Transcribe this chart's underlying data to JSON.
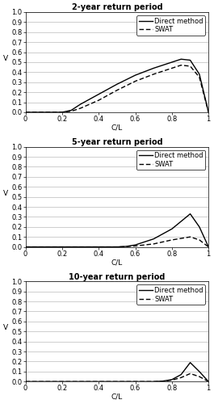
{
  "subplots": [
    {
      "title": "2-year return period",
      "direct_x": [
        0,
        0.2,
        0.25,
        0.3,
        0.4,
        0.5,
        0.6,
        0.7,
        0.8,
        0.85,
        0.9,
        0.95,
        1.0
      ],
      "direct_y": [
        0,
        0.0,
        0.02,
        0.08,
        0.18,
        0.28,
        0.37,
        0.44,
        0.5,
        0.53,
        0.52,
        0.38,
        0.0
      ],
      "swat_x": [
        0,
        0.2,
        0.25,
        0.3,
        0.4,
        0.5,
        0.6,
        0.7,
        0.8,
        0.85,
        0.9,
        0.95,
        1.0
      ],
      "swat_y": [
        0,
        0.0,
        0.01,
        0.04,
        0.12,
        0.22,
        0.31,
        0.38,
        0.44,
        0.47,
        0.46,
        0.35,
        0.0
      ]
    },
    {
      "title": "5-year return period",
      "direct_x": [
        0,
        0.5,
        0.55,
        0.6,
        0.7,
        0.8,
        0.9,
        0.95,
        1.0
      ],
      "direct_y": [
        0,
        0.0,
        0.005,
        0.02,
        0.08,
        0.18,
        0.33,
        0.2,
        0.0
      ],
      "swat_x": [
        0,
        0.5,
        0.55,
        0.6,
        0.7,
        0.8,
        0.9,
        0.95,
        1.0
      ],
      "swat_y": [
        0,
        0.0,
        0.003,
        0.01,
        0.03,
        0.07,
        0.1,
        0.07,
        0.0
      ]
    },
    {
      "title": "10-year return period",
      "direct_x": [
        0,
        0.7,
        0.75,
        0.8,
        0.85,
        0.9,
        0.95,
        1.0
      ],
      "direct_y": [
        0,
        0.0,
        0.005,
        0.02,
        0.07,
        0.19,
        0.1,
        0.0
      ],
      "swat_x": [
        0,
        0.7,
        0.75,
        0.8,
        0.85,
        0.9,
        0.95,
        1.0
      ],
      "swat_y": [
        0,
        0.0,
        0.003,
        0.015,
        0.04,
        0.08,
        0.05,
        0.0
      ]
    }
  ],
  "xlabel": "C/L",
  "ylabel": "V",
  "xlim": [
    0,
    1
  ],
  "ylim": [
    0,
    1.0
  ],
  "yticks": [
    0.0,
    0.1,
    0.2,
    0.3,
    0.4,
    0.5,
    0.6,
    0.7,
    0.8,
    0.9,
    1.0
  ],
  "xticks": [
    0,
    0.2,
    0.4,
    0.6,
    0.8,
    1.0
  ],
  "xtick_labels": [
    "0",
    "0.2",
    "0.4",
    "0.6",
    "0.8",
    "1"
  ],
  "legend_labels": [
    "Direct method",
    "SWAT"
  ],
  "direct_color": "#000000",
  "swat_color": "#000000",
  "bg_color": "#ffffff",
  "grid_color": "#bbbbbb",
  "title_fontsize": 7,
  "label_fontsize": 6.5,
  "tick_fontsize": 6,
  "legend_fontsize": 6
}
